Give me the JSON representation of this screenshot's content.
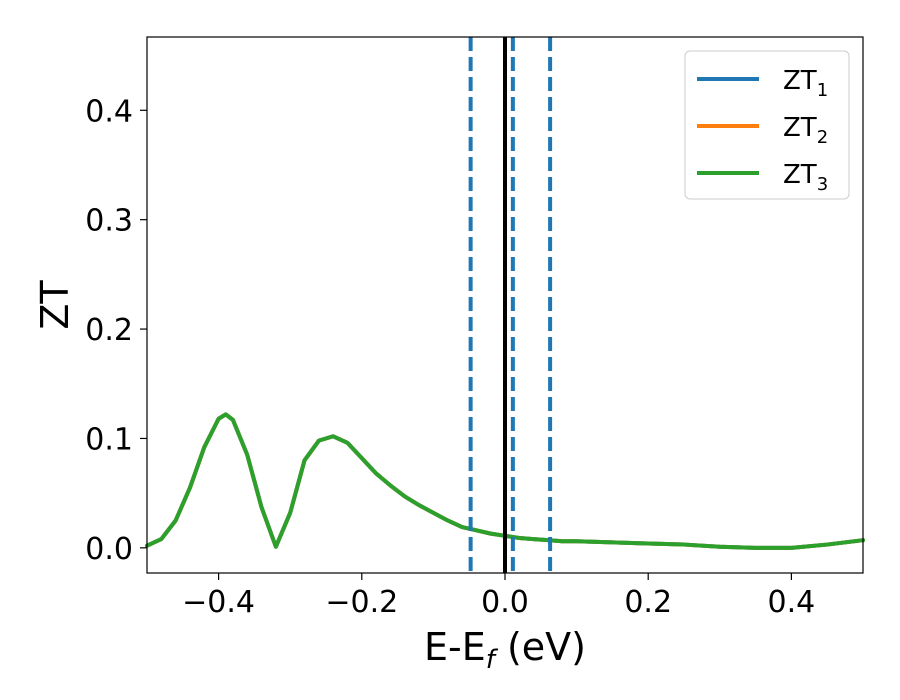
{
  "chart_data": {
    "type": "line",
    "xlabel": {
      "main": "E-E",
      "sub": "f",
      "unit": " (eV)"
    },
    "ylabel": "ZT",
    "xlim": [
      -0.5,
      0.5
    ],
    "ylim": [
      -0.023,
      0.467
    ],
    "x_ticks": [
      -0.4,
      -0.2,
      0.0,
      0.2,
      0.4
    ],
    "x_tick_labels": [
      "−0.4",
      "−0.2",
      "0.0",
      "0.2",
      "0.4"
    ],
    "y_ticks": [
      0.0,
      0.1,
      0.2,
      0.3,
      0.4
    ],
    "y_tick_labels": [
      "0.0",
      "0.1",
      "0.2",
      "0.3",
      "0.4"
    ],
    "grid": false,
    "legend_position": "top-right",
    "series": [
      {
        "name": {
          "main": "ZT",
          "sub": "1"
        },
        "color": "#1f77b4",
        "x": [
          -0.5,
          -0.48,
          -0.46,
          -0.44,
          -0.42,
          -0.4,
          -0.39,
          -0.38,
          -0.36,
          -0.34,
          -0.32,
          -0.3,
          -0.28,
          -0.26,
          -0.24,
          -0.22,
          -0.2,
          -0.18,
          -0.16,
          -0.14,
          -0.12,
          -0.1,
          -0.08,
          -0.06,
          -0.04,
          -0.02,
          0.0,
          0.02,
          0.04,
          0.06,
          0.08,
          0.1,
          0.15,
          0.2,
          0.25,
          0.3,
          0.35,
          0.4,
          0.45,
          0.5
        ],
        "y": [
          0.002,
          0.008,
          0.025,
          0.055,
          0.092,
          0.118,
          0.122,
          0.117,
          0.085,
          0.037,
          0.001,
          0.032,
          0.08,
          0.098,
          0.102,
          0.096,
          0.082,
          0.068,
          0.057,
          0.047,
          0.039,
          0.032,
          0.025,
          0.019,
          0.016,
          0.013,
          0.011,
          0.009,
          0.008,
          0.007,
          0.006,
          0.006,
          0.005,
          0.004,
          0.003,
          0.001,
          0.0,
          0.0,
          0.003,
          0.007
        ]
      },
      {
        "name": {
          "main": "ZT",
          "sub": "2"
        },
        "color": "#ff7f0e",
        "x": [
          -0.5,
          -0.48,
          -0.46,
          -0.44,
          -0.42,
          -0.4,
          -0.39,
          -0.38,
          -0.36,
          -0.34,
          -0.32,
          -0.3,
          -0.28,
          -0.26,
          -0.24,
          -0.22,
          -0.2,
          -0.18,
          -0.16,
          -0.14,
          -0.12,
          -0.1,
          -0.08,
          -0.06,
          -0.04,
          -0.02,
          0.0,
          0.02,
          0.04,
          0.06,
          0.08,
          0.1,
          0.15,
          0.2,
          0.25,
          0.3,
          0.35,
          0.4,
          0.45,
          0.5
        ],
        "y": [
          0.002,
          0.008,
          0.025,
          0.055,
          0.092,
          0.118,
          0.122,
          0.117,
          0.085,
          0.037,
          0.001,
          0.032,
          0.08,
          0.098,
          0.102,
          0.096,
          0.082,
          0.068,
          0.057,
          0.047,
          0.039,
          0.032,
          0.025,
          0.019,
          0.016,
          0.013,
          0.011,
          0.009,
          0.008,
          0.007,
          0.006,
          0.006,
          0.005,
          0.004,
          0.003,
          0.001,
          0.0,
          0.0,
          0.003,
          0.007
        ]
      },
      {
        "name": {
          "main": "ZT",
          "sub": "3"
        },
        "color": "#2ca02c",
        "x": [
          -0.5,
          -0.48,
          -0.46,
          -0.44,
          -0.42,
          -0.4,
          -0.39,
          -0.38,
          -0.36,
          -0.34,
          -0.32,
          -0.3,
          -0.28,
          -0.26,
          -0.24,
          -0.22,
          -0.2,
          -0.18,
          -0.16,
          -0.14,
          -0.12,
          -0.1,
          -0.08,
          -0.06,
          -0.04,
          -0.02,
          0.0,
          0.02,
          0.04,
          0.06,
          0.08,
          0.1,
          0.15,
          0.2,
          0.25,
          0.3,
          0.35,
          0.4,
          0.45,
          0.5
        ],
        "y": [
          0.002,
          0.008,
          0.025,
          0.055,
          0.092,
          0.118,
          0.122,
          0.117,
          0.085,
          0.037,
          0.001,
          0.032,
          0.08,
          0.098,
          0.102,
          0.096,
          0.082,
          0.068,
          0.057,
          0.047,
          0.039,
          0.032,
          0.025,
          0.019,
          0.016,
          0.013,
          0.011,
          0.009,
          0.008,
          0.007,
          0.006,
          0.006,
          0.005,
          0.004,
          0.003,
          0.001,
          0.0,
          0.0,
          0.003,
          0.007
        ]
      }
    ],
    "vertical_lines": [
      {
        "x": 0.0,
        "color": "#000000",
        "style": "solid"
      },
      {
        "x": -0.048,
        "color": "#1f77b4",
        "style": "dashed"
      },
      {
        "x": 0.011,
        "color": "#1f77b4",
        "style": "dashed"
      },
      {
        "x": 0.063,
        "color": "#1f77b4",
        "style": "dashed"
      }
    ]
  }
}
